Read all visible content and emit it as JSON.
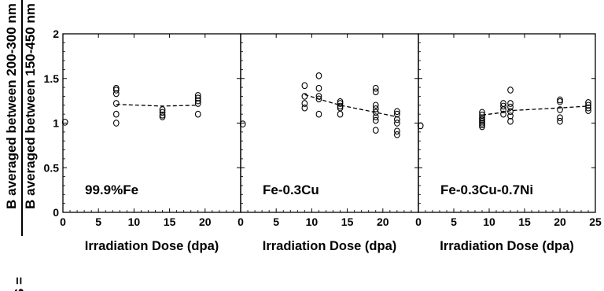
{
  "chart_data": {
    "type": "scatter",
    "ylabel": {
      "prefix": "S =",
      "numerator": "B averaged between 200-300 nm",
      "denominator": "B averaged between 150-450 nm"
    },
    "xlabel": "Irradiation Dose (dpa)",
    "ylim": [
      0,
      2
    ],
    "yticks": [
      "0",
      "0.5",
      "1",
      "1.5",
      "2"
    ],
    "xlim": [
      0,
      25
    ],
    "grid": false,
    "panels": [
      {
        "label": "99.9%Fe",
        "xticks": [
          "0",
          "5",
          "10",
          "15",
          "20"
        ],
        "points": [
          [
            0.3,
            1.01
          ],
          [
            7.5,
            1.39
          ],
          [
            7.5,
            1.37
          ],
          [
            7.5,
            1.33
          ],
          [
            7.5,
            1.22
          ],
          [
            7.5,
            1.1
          ],
          [
            7.5,
            1.0
          ],
          [
            14,
            1.15
          ],
          [
            14,
            1.12
          ],
          [
            14,
            1.09
          ],
          [
            14,
            1.07
          ],
          [
            19,
            1.31
          ],
          [
            19,
            1.28
          ],
          [
            19,
            1.25
          ],
          [
            19,
            1.22
          ],
          [
            19,
            1.1
          ]
        ],
        "trend": [
          [
            7.5,
            1.21
          ],
          [
            14,
            1.19
          ],
          [
            19,
            1.2
          ]
        ]
      },
      {
        "label": "Fe-0.3Cu",
        "xticks": [
          "0",
          "5",
          "10",
          "15",
          "20"
        ],
        "points": [
          [
            0.3,
            0.99
          ],
          [
            9,
            1.42
          ],
          [
            9,
            1.3
          ],
          [
            9,
            1.22
          ],
          [
            9,
            1.17
          ],
          [
            11,
            1.53
          ],
          [
            11,
            1.39
          ],
          [
            11,
            1.3
          ],
          [
            11,
            1.27
          ],
          [
            11,
            1.1
          ],
          [
            14,
            1.24
          ],
          [
            14,
            1.22
          ],
          [
            14,
            1.19
          ],
          [
            14,
            1.17
          ],
          [
            14,
            1.1
          ],
          [
            19,
            1.39
          ],
          [
            19,
            1.35
          ],
          [
            19,
            1.2
          ],
          [
            19,
            1.16
          ],
          [
            19,
            1.12
          ],
          [
            19,
            1.07
          ],
          [
            19,
            1.03
          ],
          [
            19,
            0.92
          ],
          [
            22,
            1.13
          ],
          [
            22,
            1.1
          ],
          [
            22,
            1.04
          ],
          [
            22,
            1.0
          ],
          [
            22,
            0.91
          ],
          [
            22,
            0.87
          ]
        ],
        "trend": [
          [
            9,
            1.32
          ],
          [
            11,
            1.27
          ],
          [
            14,
            1.2
          ],
          [
            19,
            1.12
          ],
          [
            22,
            1.07
          ]
        ]
      },
      {
        "label": "Fe-0.3Cu-0.7Ni",
        "xticks": [
          "0",
          "5",
          "10",
          "15",
          "20",
          "25"
        ],
        "points": [
          [
            0.3,
            0.97
          ],
          [
            9,
            1.12
          ],
          [
            9,
            1.09
          ],
          [
            9,
            1.06
          ],
          [
            9,
            1.04
          ],
          [
            9,
            1.02
          ],
          [
            9,
            1.0
          ],
          [
            9,
            0.98
          ],
          [
            9,
            0.96
          ],
          [
            12,
            1.22
          ],
          [
            12,
            1.19
          ],
          [
            12,
            1.15
          ],
          [
            12,
            1.1
          ],
          [
            13,
            1.37
          ],
          [
            13,
            1.22
          ],
          [
            13,
            1.18
          ],
          [
            13,
            1.13
          ],
          [
            13,
            1.08
          ],
          [
            13,
            1.02
          ],
          [
            20,
            1.26
          ],
          [
            20,
            1.24
          ],
          [
            20,
            1.15
          ],
          [
            20,
            1.06
          ],
          [
            20,
            1.02
          ],
          [
            24,
            1.23
          ],
          [
            24,
            1.2
          ],
          [
            24,
            1.17
          ],
          [
            24,
            1.14
          ]
        ],
        "trend": [
          [
            9,
            1.09
          ],
          [
            12,
            1.12
          ],
          [
            13,
            1.14
          ],
          [
            20,
            1.17
          ],
          [
            24,
            1.19
          ]
        ]
      }
    ]
  }
}
